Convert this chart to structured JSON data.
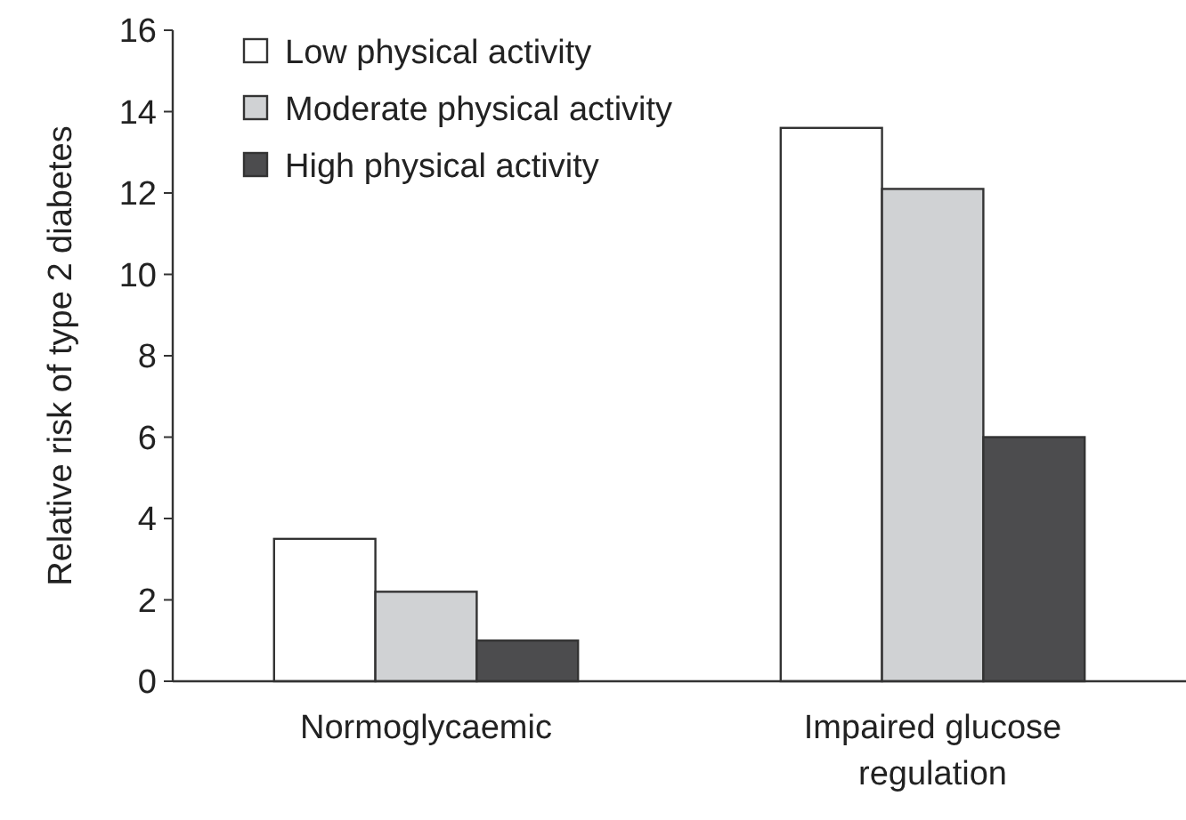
{
  "chart_data": {
    "type": "bar",
    "ylabel": "Relative risk of type 2 diabetes",
    "categories": [
      "Normoglycaemic",
      "Impaired glucose regulation"
    ],
    "series": [
      {
        "name": "Low physical activity",
        "color": "#ffffff",
        "values": [
          3.5,
          13.6
        ]
      },
      {
        "name": "Moderate physical activity",
        "color": "#d0d2d4",
        "values": [
          2.2,
          12.1
        ]
      },
      {
        "name": "High physical activity",
        "color": "#4c4c4e",
        "values": [
          1.0,
          6.0
        ]
      }
    ],
    "ylim": [
      0,
      16
    ],
    "yticks": [
      0,
      2,
      4,
      6,
      8,
      10,
      12,
      14,
      16
    ],
    "grid": false,
    "legend": "top left"
  }
}
